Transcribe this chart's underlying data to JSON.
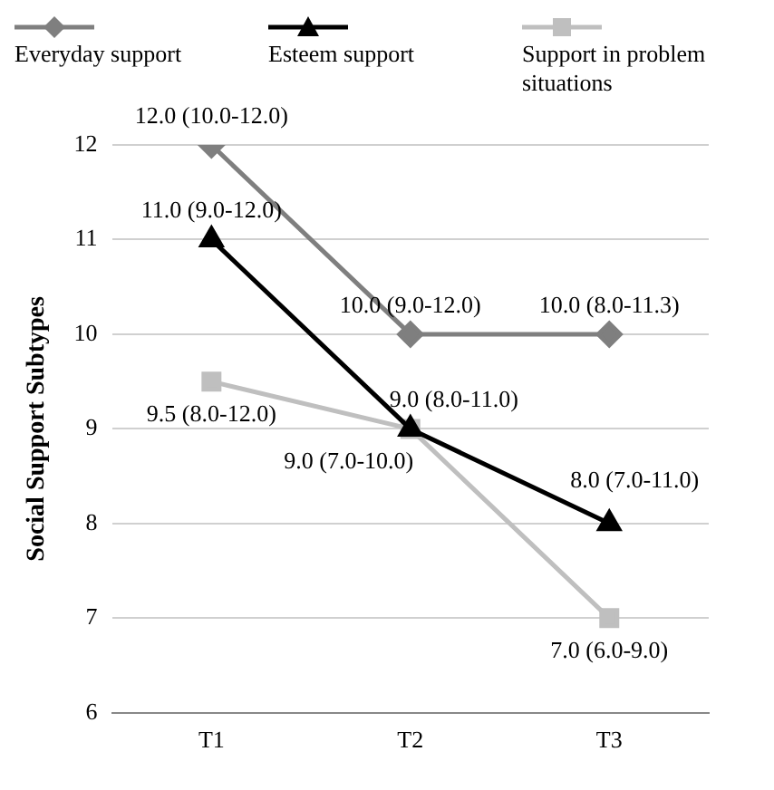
{
  "chart_data": {
    "type": "line",
    "ylabel": "Social Support Subtypes",
    "categories": [
      "T1",
      "T2",
      "T3"
    ],
    "series": [
      {
        "name": "Everyday support",
        "color": "#7f7f7f",
        "marker": "diamond",
        "values": [
          12,
          10,
          10
        ],
        "value_labels": [
          "12.0 (10.0-12.0)",
          "10.0 (9.0-12.0)",
          "10.0 (8.0-11.3)"
        ]
      },
      {
        "name": "Esteem support",
        "color": "#000000",
        "marker": "triangle",
        "values": [
          11,
          9,
          8
        ],
        "value_labels": [
          "11.0 (9.0-12.0)",
          "9.0 (8.0-11.0)",
          "8.0 (7.0-11.0)"
        ]
      },
      {
        "name": "Support in problem situations",
        "color": "#bfbfbf",
        "marker": "square",
        "values": [
          9.5,
          9,
          7
        ],
        "value_labels": [
          "9.5 (8.0-12.0)",
          "9.0 (7.0-10.0)",
          "7.0 (6.0-9.0)"
        ]
      }
    ],
    "ylim": [
      6,
      12
    ],
    "yticks": [
      6,
      7,
      8,
      9,
      10,
      11,
      12
    ],
    "grid": "y",
    "legend": "top"
  }
}
